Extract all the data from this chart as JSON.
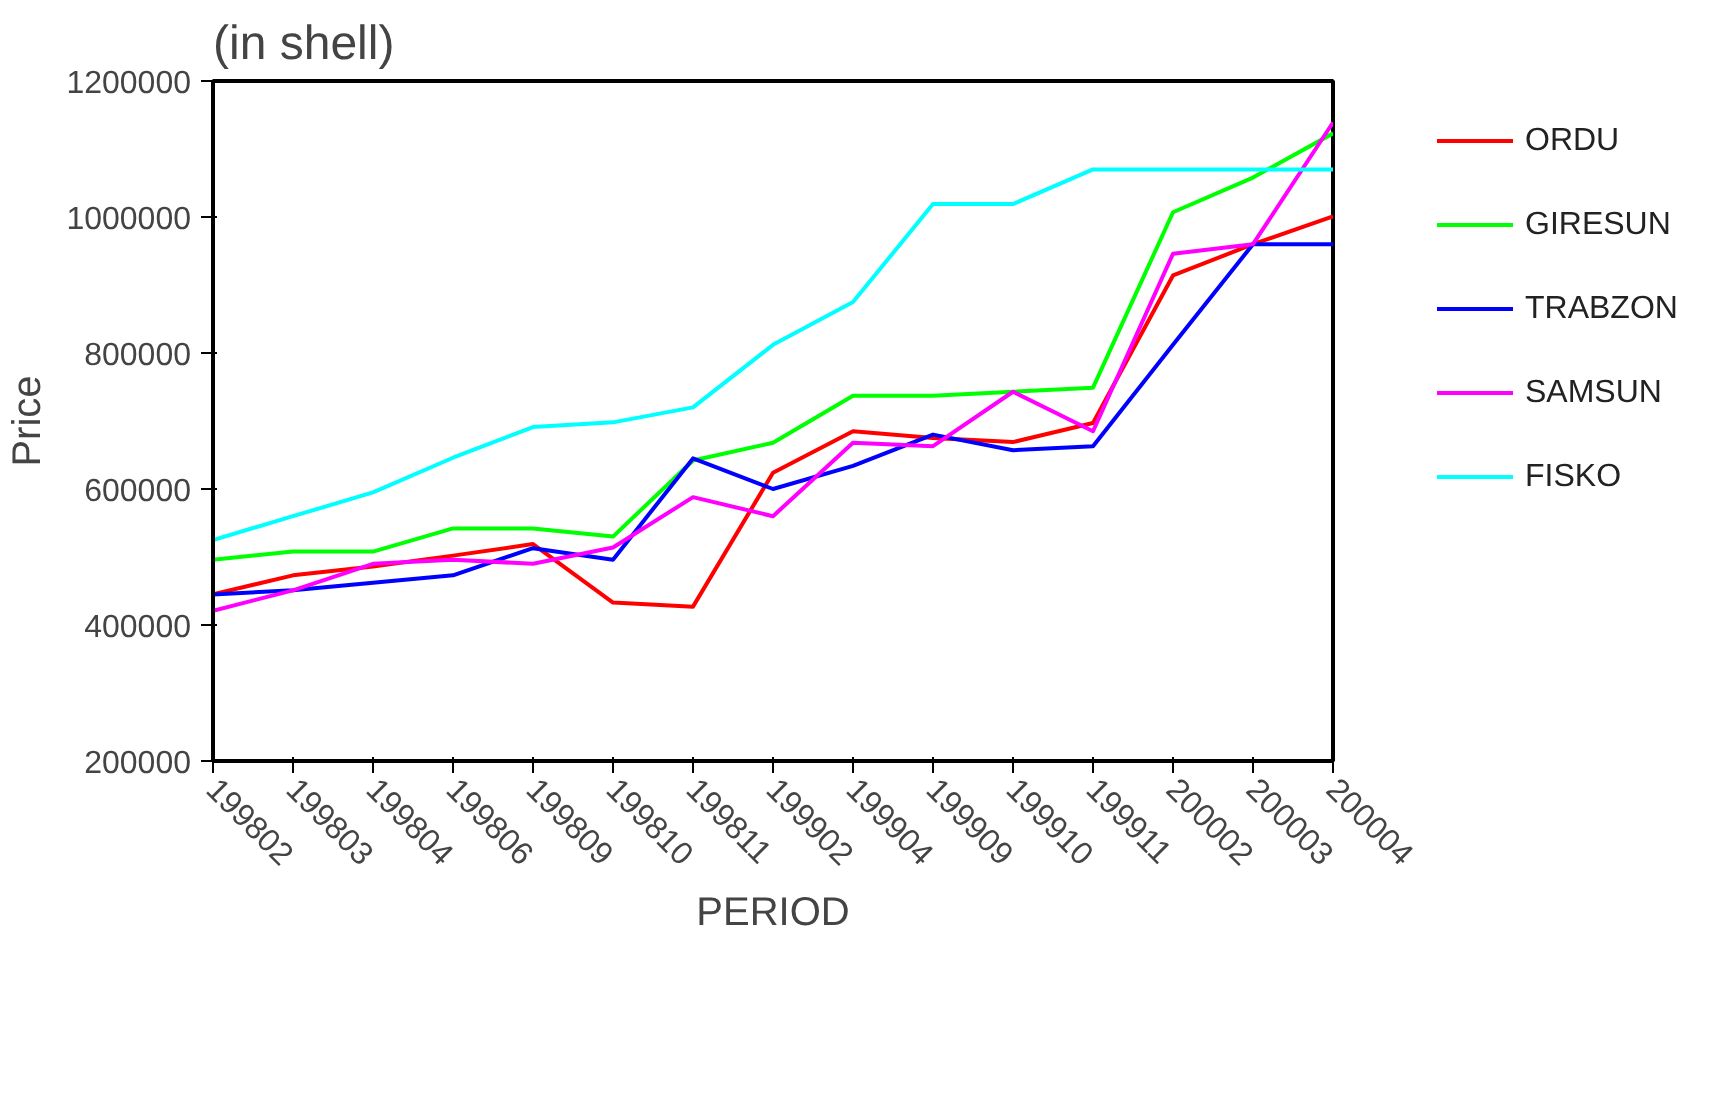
{
  "chart_data": {
    "type": "line",
    "title": "(in shell)",
    "xlabel": "PERIOD",
    "ylabel": "Price",
    "categories": [
      "199802",
      "199803",
      "199804",
      "199806",
      "199809",
      "199810",
      "199811",
      "199902",
      "199904",
      "199909",
      "199910",
      "199911",
      "200002",
      "200003",
      "200004"
    ],
    "series": [
      {
        "name": "ORDU",
        "color": "#ff0000",
        "values": [
          445000,
          473000,
          486000,
          502000,
          519000,
          433000,
          427000,
          624000,
          685000,
          675000,
          669000,
          697000,
          914000,
          960000,
          1001000
        ]
      },
      {
        "name": "GIRESUN",
        "color": "#00ff00",
        "values": [
          496000,
          508000,
          508000,
          542000,
          542000,
          530000,
          642000,
          668000,
          737000,
          737000,
          743000,
          749000,
          1007000,
          1058000,
          1123000
        ]
      },
      {
        "name": "TRABZON",
        "color": "#0000ff",
        "values": [
          445000,
          451000,
          462000,
          473000,
          513000,
          496000,
          645000,
          600000,
          634000,
          680000,
          657000,
          663000,
          812000,
          960000,
          960000
        ]
      },
      {
        "name": "SAMSUN",
        "color": "#ff00ff",
        "values": [
          421000,
          451000,
          490000,
          496000,
          490000,
          514000,
          588000,
          560000,
          668000,
          663000,
          743000,
          685000,
          946000,
          960000,
          1139000
        ]
      },
      {
        "name": "FISKO",
        "color": "#00ffff",
        "values": [
          525000,
          560000,
          595000,
          646000,
          691000,
          698000,
          720000,
          812000,
          875000,
          1019000,
          1019000,
          1070000,
          1070000,
          1070000,
          1070000
        ]
      }
    ],
    "ylim": [
      200000,
      1200000
    ],
    "yticks": [
      200000,
      400000,
      600000,
      800000,
      1000000,
      1200000
    ],
    "grid": false,
    "legend": "right",
    "marker": "none",
    "line_style": "solid"
  }
}
